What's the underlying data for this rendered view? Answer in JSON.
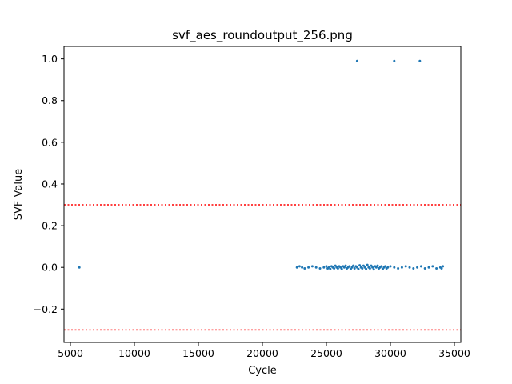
{
  "chart_data": {
    "type": "scatter",
    "title": "svf_aes_roundoutput_256.png",
    "xlabel": "Cycle",
    "ylabel": "SVF Value",
    "xlim": [
      4500,
      35500
    ],
    "ylim": [
      -0.36,
      1.06
    ],
    "xticks": [
      5000,
      10000,
      15000,
      20000,
      25000,
      30000,
      35000
    ],
    "xtick_labels": [
      "5000",
      "10000",
      "15000",
      "20000",
      "25000",
      "30000",
      "35000"
    ],
    "yticks": [
      -0.2,
      0.0,
      0.2,
      0.4,
      0.6,
      0.8,
      1.0
    ],
    "ytick_labels": [
      "−0.2",
      "0.0",
      "0.2",
      "0.4",
      "0.6",
      "0.8",
      "1.0"
    ],
    "grid": false,
    "point_color": "#1f77b4",
    "threshold_color": "#ff0000",
    "thresholds": [
      0.3,
      -0.3
    ],
    "series": [
      {
        "points": [
          [
            5700,
            0.0
          ],
          [
            27400,
            0.99
          ],
          [
            30300,
            0.99
          ],
          [
            32300,
            0.99
          ],
          [
            22700,
            0.0
          ],
          [
            22900,
            0.005
          ],
          [
            23100,
            0.0
          ],
          [
            23300,
            -0.005
          ],
          [
            23600,
            0.0
          ],
          [
            23900,
            0.005
          ],
          [
            24200,
            0.0
          ],
          [
            24500,
            -0.005
          ],
          [
            24800,
            0.0
          ],
          [
            25000,
            0.005
          ],
          [
            25100,
            -0.005
          ],
          [
            25200,
            0.0
          ],
          [
            25300,
            -0.008
          ],
          [
            25400,
            0.005
          ],
          [
            25500,
            0.0
          ],
          [
            25600,
            -0.005
          ],
          [
            25700,
            0.008
          ],
          [
            25800,
            0.0
          ],
          [
            25900,
            -0.005
          ],
          [
            26000,
            0.005
          ],
          [
            26100,
            0.0
          ],
          [
            26200,
            -0.008
          ],
          [
            26300,
            0.005
          ],
          [
            26400,
            0.0
          ],
          [
            26500,
            0.008
          ],
          [
            26600,
            -0.005
          ],
          [
            26700,
            0.0
          ],
          [
            26800,
            0.005
          ],
          [
            26900,
            -0.008
          ],
          [
            27000,
            0.0
          ],
          [
            27100,
            0.008
          ],
          [
            27200,
            -0.005
          ],
          [
            27300,
            0.005
          ],
          [
            27400,
            0.0
          ],
          [
            27500,
            -0.008
          ],
          [
            27600,
            0.01
          ],
          [
            27700,
            0.0
          ],
          [
            27800,
            -0.005
          ],
          [
            27900,
            0.008
          ],
          [
            28000,
            0.0
          ],
          [
            28100,
            -0.008
          ],
          [
            28200,
            0.012
          ],
          [
            28300,
            0.0
          ],
          [
            28400,
            -0.005
          ],
          [
            28500,
            0.008
          ],
          [
            28600,
            0.0
          ],
          [
            28700,
            -0.01
          ],
          [
            28800,
            0.005
          ],
          [
            28900,
            0.0
          ],
          [
            29000,
            0.008
          ],
          [
            29100,
            -0.005
          ],
          [
            29200,
            0.0
          ],
          [
            29300,
            0.005
          ],
          [
            29400,
            -0.008
          ],
          [
            29500,
            0.0
          ],
          [
            29600,
            0.005
          ],
          [
            29700,
            -0.005
          ],
          [
            29800,
            0.0
          ],
          [
            30000,
            0.005
          ],
          [
            30300,
            0.0
          ],
          [
            30600,
            -0.005
          ],
          [
            30900,
            0.0
          ],
          [
            31200,
            0.005
          ],
          [
            31500,
            0.0
          ],
          [
            31800,
            -0.005
          ],
          [
            32100,
            0.0
          ],
          [
            32400,
            0.005
          ],
          [
            32700,
            -0.005
          ],
          [
            33000,
            0.0
          ],
          [
            33300,
            0.005
          ],
          [
            33600,
            -0.005
          ],
          [
            33900,
            0.0
          ],
          [
            34100,
            0.005
          ],
          [
            34000,
            -0.005
          ]
        ]
      }
    ]
  }
}
